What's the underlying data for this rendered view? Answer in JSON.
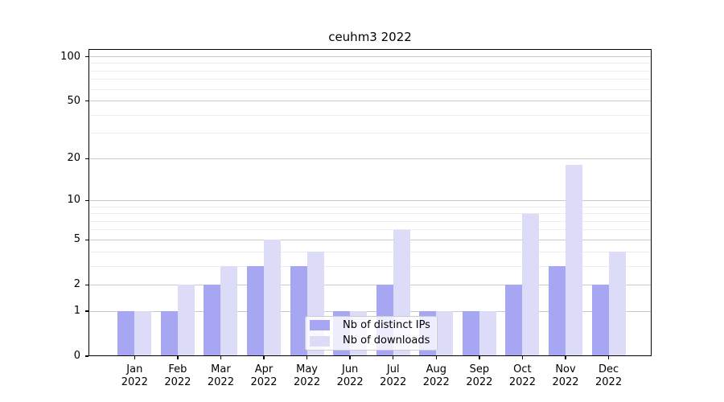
{
  "title": "ceuhm3 2022",
  "legend": {
    "items": [
      {
        "label": "Nb of distinct IPs",
        "color": "#a6a6f2"
      },
      {
        "label": "Nb of downloads",
        "color": "#dcdcf8"
      }
    ]
  },
  "chart_data": {
    "type": "bar",
    "title": "ceuhm3 2022",
    "categories": [
      "Jan 2022",
      "Feb 2022",
      "Mar 2022",
      "Apr 2022",
      "May 2022",
      "Jun 2022",
      "Jul 2022",
      "Aug 2022",
      "Sep 2022",
      "Oct 2022",
      "Nov 2022",
      "Dec 2022"
    ],
    "x_tick_line1": [
      "Jan",
      "Feb",
      "Mar",
      "Apr",
      "May",
      "Jun",
      "Jul",
      "Aug",
      "Sep",
      "Oct",
      "Nov",
      "Dec"
    ],
    "x_tick_line2": "2022",
    "series": [
      {
        "name": "Nb of distinct IPs",
        "color": "#a6a6f2",
        "values": [
          1,
          1,
          2,
          3,
          3,
          1,
          2,
          1,
          1,
          2,
          3,
          2
        ]
      },
      {
        "name": "Nb of downloads",
        "color": "#dcdcf8",
        "values": [
          1,
          2,
          3,
          5,
          4,
          1,
          6,
          1,
          1,
          8,
          18,
          4
        ]
      }
    ],
    "xlabel": "",
    "ylabel": "",
    "yscale": "log1p",
    "ylim": [
      0,
      100
    ],
    "y_ticks": [
      0,
      1,
      2,
      5,
      10,
      20,
      50,
      100
    ],
    "y_minor_gridlines": [
      3,
      4,
      6,
      7,
      8,
      9,
      30,
      40,
      60,
      70,
      80,
      90
    ],
    "grid": true,
    "legend_position": "lower center"
  },
  "colors": {
    "bar_ips": "#a6a6f2",
    "bar_downloads": "#dcdcf8",
    "major_grid": "#c9c9c9",
    "minor_grid": "#ededed",
    "axis": "#000000",
    "background": "#ffffff"
  }
}
